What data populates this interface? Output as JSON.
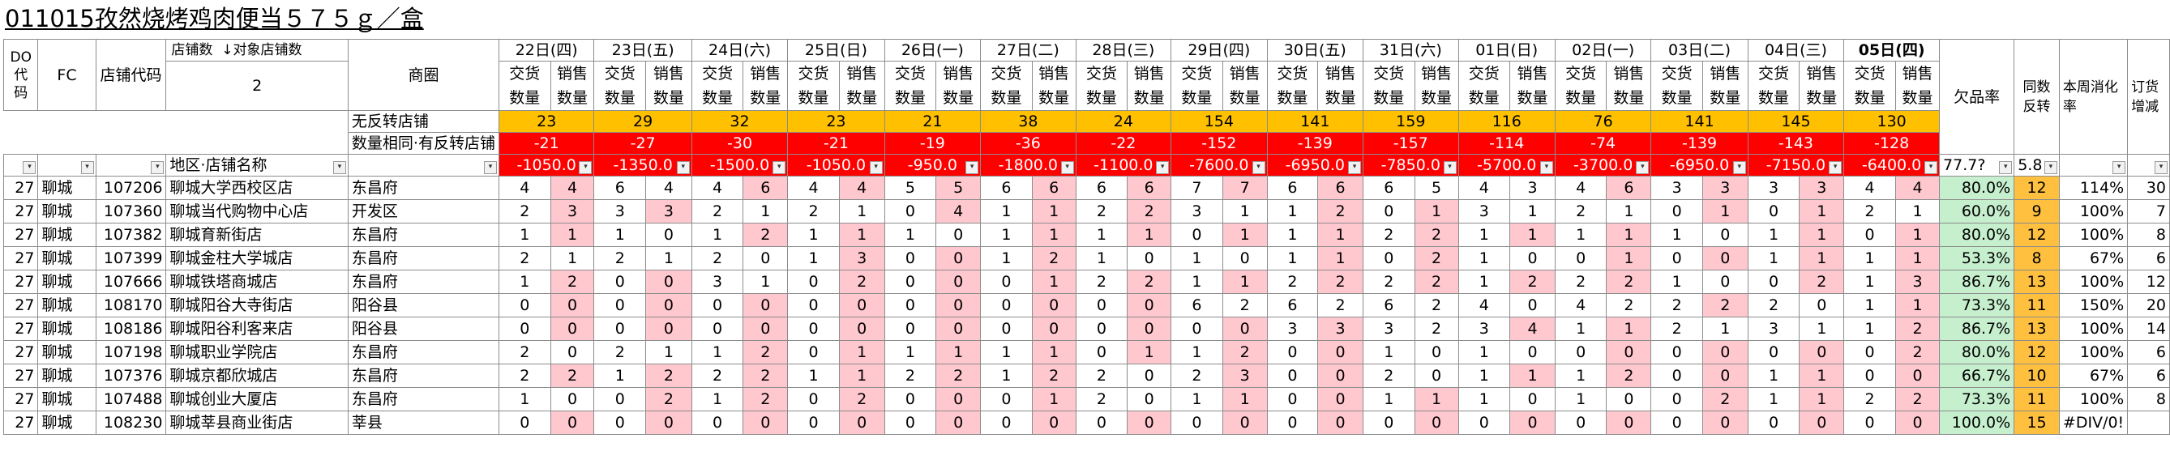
{
  "title": "011015孜然烧烤鸡肉便当５７５ｇ／盒",
  "hdr": {
    "do_code": "DO\n代\n码",
    "fc": "FC",
    "store_code": "店铺代码",
    "store_count_label": "店铺数",
    "target_store_label": "↓对象店铺数",
    "count_value": "2",
    "shop_area": "商圈",
    "no_reverse": "无反转店铺",
    "same_qty": "数量相同·有反转店铺",
    "region_name": "地区·店铺名称",
    "shortage_rate": "欠品率",
    "same_reverse": "同数反转",
    "weekly_rate": "本周消化率",
    "order_change": "订货增减",
    "deliver": "交货数量",
    "sales": "销售数量",
    "shortage_avg": "77.7?",
    "reverse_avg": "5.8"
  },
  "dates": [
    "22日(四)",
    "23日(五)",
    "24日(六)",
    "25日(日)",
    "26日(一)",
    "27日(二)",
    "28日(三)",
    "29日(四)",
    "30日(五)",
    "31日(六)",
    "01日(日)",
    "02日(一)",
    "03日(二)",
    "04日(三)",
    "05日(四)"
  ],
  "no_reverse_vals": [
    "23",
    "29",
    "32",
    "23",
    "21",
    "38",
    "24",
    "154",
    "141",
    "159",
    "116",
    "76",
    "141",
    "145",
    "130"
  ],
  "same_qty_vals": [
    "-21",
    "-27",
    "-30",
    "-21",
    "-19",
    "-36",
    "-22",
    "-152",
    "-139",
    "-157",
    "-114",
    "-74",
    "-139",
    "-143",
    "-128"
  ],
  "region_vals": [
    "-1050.0",
    "-1350.0",
    "-1500.0",
    "-1050.0",
    "-950.0",
    "-1800.0",
    "-1100.0",
    "-7600.0",
    "-6950.0",
    "-7850.0",
    "-5700.0",
    "-3700.0",
    "-6950.0",
    "-7150.0",
    "-6400.0"
  ],
  "rows": [
    {
      "do": "27",
      "fc": "聊城",
      "code": "107206",
      "name": "聊城大学西校区店",
      "area": "东昌府",
      "v": [
        4,
        4,
        6,
        4,
        4,
        6,
        4,
        4,
        5,
        5,
        6,
        6,
        6,
        6,
        7,
        7,
        6,
        6,
        6,
        5,
        4,
        3,
        4,
        6,
        3,
        3,
        3,
        3,
        4,
        4
      ],
      "rate": "80.0%",
      "rev": "12",
      "wk": "114%",
      "ord": "30"
    },
    {
      "do": "27",
      "fc": "聊城",
      "code": "107360",
      "name": "聊城当代购物中心店",
      "area": "开发区",
      "v": [
        2,
        3,
        3,
        3,
        2,
        1,
        2,
        1,
        0,
        4,
        1,
        1,
        2,
        2,
        3,
        1,
        1,
        2,
        0,
        1,
        3,
        1,
        2,
        1,
        0,
        1,
        0,
        1,
        2,
        1
      ],
      "rate": "60.0%",
      "rev": "9",
      "wk": "100%",
      "ord": "7"
    },
    {
      "do": "27",
      "fc": "聊城",
      "code": "107382",
      "name": "聊城育新街店",
      "area": "东昌府",
      "v": [
        1,
        1,
        1,
        0,
        1,
        2,
        1,
        1,
        1,
        0,
        1,
        1,
        1,
        1,
        0,
        1,
        1,
        1,
        2,
        2,
        1,
        1,
        1,
        1,
        1,
        0,
        1,
        1,
        0,
        1
      ],
      "rate": "80.0%",
      "rev": "12",
      "wk": "100%",
      "ord": "8"
    },
    {
      "do": "27",
      "fc": "聊城",
      "code": "107399",
      "name": "聊城金柱大学城店",
      "area": "东昌府",
      "v": [
        2,
        1,
        2,
        1,
        2,
        0,
        1,
        3,
        0,
        0,
        1,
        2,
        1,
        0,
        1,
        0,
        1,
        1,
        0,
        2,
        1,
        0,
        0,
        1,
        0,
        0,
        1,
        1,
        1,
        1
      ],
      "rate": "53.3%",
      "rev": "8",
      "wk": "67%",
      "ord": "6"
    },
    {
      "do": "27",
      "fc": "聊城",
      "code": "107666",
      "name": "聊城铁塔商城店",
      "area": "东昌府",
      "v": [
        1,
        2,
        0,
        0,
        3,
        1,
        0,
        2,
        0,
        0,
        0,
        1,
        2,
        2,
        1,
        1,
        2,
        2,
        2,
        2,
        1,
        2,
        2,
        2,
        1,
        0,
        0,
        2,
        1,
        3
      ],
      "rate": "86.7%",
      "rev": "13",
      "wk": "100%",
      "ord": "12"
    },
    {
      "do": "27",
      "fc": "聊城",
      "code": "108170",
      "name": "聊城阳谷大寺街店",
      "area": "阳谷县",
      "v": [
        0,
        0,
        0,
        0,
        0,
        0,
        0,
        0,
        0,
        0,
        0,
        0,
        0,
        0,
        6,
        2,
        6,
        2,
        6,
        2,
        4,
        0,
        4,
        2,
        2,
        2,
        2,
        0,
        1,
        1
      ],
      "rate": "73.3%",
      "rev": "11",
      "wk": "150%",
      "ord": "20"
    },
    {
      "do": "27",
      "fc": "聊城",
      "code": "108186",
      "name": "聊城阳谷利客来店",
      "area": "阳谷县",
      "v": [
        0,
        0,
        0,
        0,
        0,
        0,
        0,
        0,
        0,
        0,
        0,
        0,
        0,
        0,
        0,
        0,
        3,
        3,
        3,
        2,
        3,
        4,
        1,
        1,
        2,
        1,
        3,
        1,
        1,
        2
      ],
      "rate": "86.7%",
      "rev": "13",
      "wk": "100%",
      "ord": "14"
    },
    {
      "do": "27",
      "fc": "聊城",
      "code": "107198",
      "name": "聊城职业学院店",
      "area": "东昌府",
      "v": [
        2,
        0,
        2,
        1,
        1,
        2,
        0,
        1,
        1,
        1,
        1,
        1,
        0,
        1,
        1,
        2,
        0,
        0,
        1,
        0,
        1,
        0,
        0,
        0,
        0,
        0,
        0,
        0,
        0,
        2
      ],
      "rate": "80.0%",
      "rev": "12",
      "wk": "100%",
      "ord": "6"
    },
    {
      "do": "27",
      "fc": "聊城",
      "code": "107376",
      "name": "聊城京都欣城店",
      "area": "东昌府",
      "v": [
        2,
        2,
        1,
        2,
        2,
        2,
        1,
        1,
        2,
        2,
        1,
        2,
        2,
        0,
        2,
        3,
        0,
        0,
        2,
        0,
        1,
        1,
        1,
        2,
        0,
        0,
        1,
        1,
        0,
        0
      ],
      "rate": "66.7%",
      "rev": "10",
      "wk": "67%",
      "ord": "6"
    },
    {
      "do": "27",
      "fc": "聊城",
      "code": "107488",
      "name": "聊城创业大厦店",
      "area": "东昌府",
      "v": [
        1,
        0,
        0,
        2,
        1,
        2,
        0,
        2,
        0,
        0,
        0,
        1,
        2,
        0,
        1,
        1,
        0,
        0,
        1,
        1,
        1,
        0,
        1,
        0,
        0,
        2,
        1,
        1,
        2,
        2
      ],
      "rate": "73.3%",
      "rev": "11",
      "wk": "100%",
      "ord": "8"
    },
    {
      "do": "27",
      "fc": "聊城",
      "code": "108230",
      "name": "聊城莘县商业街店",
      "area": "莘县",
      "v": [
        0,
        0,
        0,
        0,
        0,
        0,
        0,
        0,
        0,
        0,
        0,
        0,
        0,
        0,
        0,
        0,
        0,
        0,
        0,
        0,
        0,
        0,
        0,
        0,
        0,
        0,
        0,
        0,
        0,
        0
      ],
      "rate": "100.0%",
      "rev": "15",
      "wk": "#DIV/0!",
      "ord": ""
    }
  ],
  "colors": {
    "yellow": "#ffc000",
    "red": "#ff0000",
    "pink": "#ffc7ce",
    "green": "#c6efce"
  }
}
